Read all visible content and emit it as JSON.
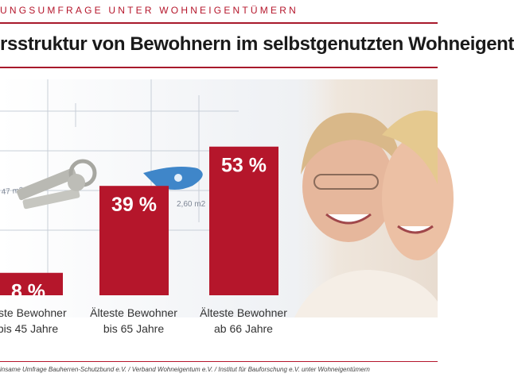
{
  "kicker": "UNGSUMFRAGE UNTER WOHNEIGENTÜMERN",
  "title": "rsstruktur von Bewohnern im selbstgenutzten Wohneigent",
  "source": "insame Umfrage Bauherren-Schutzbund e.V. / Verband Wohneigentum e.V. / Institut für Bauforschung e.V. unter Wohneigentümern",
  "colors": {
    "bar": "#b5162b",
    "accent": "#a8192b",
    "grid": "#c8cfd8"
  },
  "chart_data": {
    "type": "bar",
    "categories": [
      "teste Bewohner bis 45 Jahre",
      "Älteste Bewohner bis 65 Jahre",
      "Älteste Bewohner ab 66 Jahre"
    ],
    "category_lines": [
      [
        "teste Bewohner",
        "bis 45 Jahre"
      ],
      [
        "Älteste Bewohner",
        "bis 65 Jahre"
      ],
      [
        "Älteste Bewohner",
        "ab 66 Jahre"
      ]
    ],
    "values": [
      8,
      39,
      53
    ],
    "value_labels": [
      "8 %",
      "39 %",
      "53 %"
    ],
    "unit": "%",
    "ylim": [
      0,
      60
    ],
    "grid": false,
    "background_text": [
      "47 m2",
      "2,60 m2"
    ]
  }
}
